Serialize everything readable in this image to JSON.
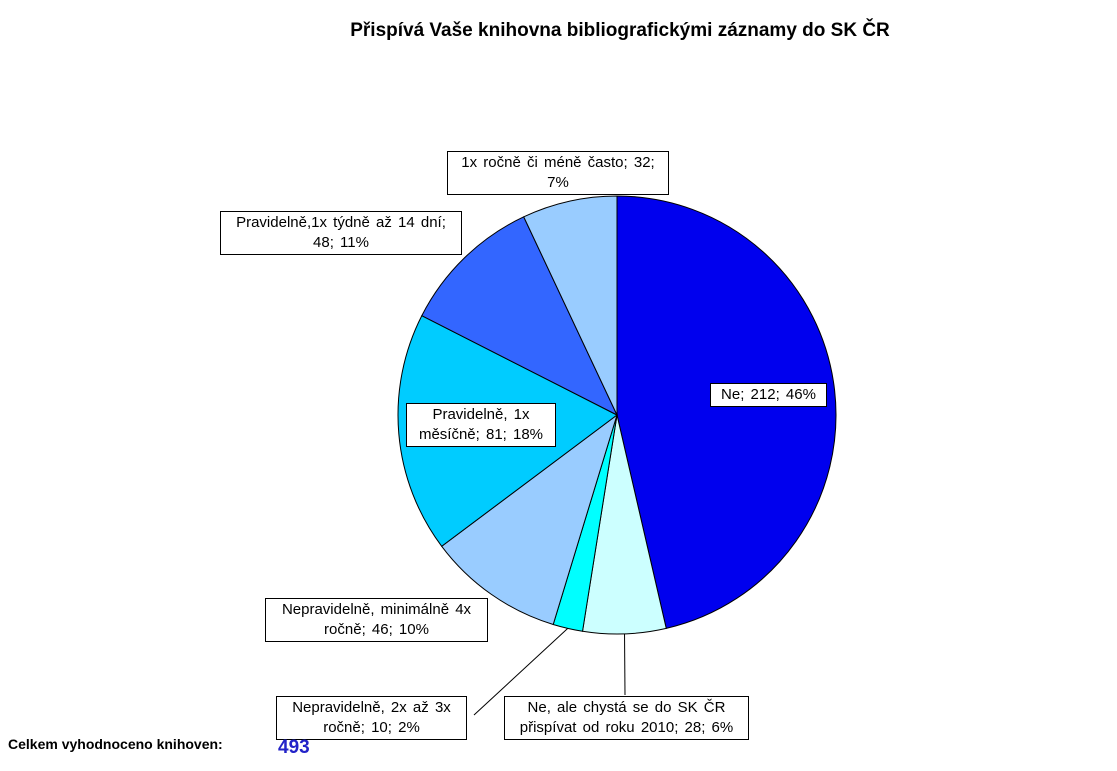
{
  "chart_data": {
    "type": "pie",
    "title": "Přispívá Vaše knihovna bibliografickými záznamy do SK ČR",
    "slices": [
      {
        "label": "Ne; 212; 46%",
        "value": 212,
        "percent": 46,
        "color": "#0000ee"
      },
      {
        "label": "Ne, ale chystá se do SK ČR přispívat od roku 2010; 28; 6%",
        "value": 28,
        "percent": 6,
        "color": "#ccffff"
      },
      {
        "label": "Nepravidelně,  2x až 3x ročně; 10; 2%",
        "value": 10,
        "percent": 2,
        "color": "#00ffff"
      },
      {
        "label": "Nepravidelně, minimálně 4x ročně; 46; 10%",
        "value": 46,
        "percent": 10,
        "color": "#99ccff"
      },
      {
        "label": "Pravidelně, 1x měsíčně; 81; 18%",
        "value": 81,
        "percent": 18,
        "color": "#00ccff"
      },
      {
        "label": "Pravidelně,1x týdně až 14 dní; 48; 11%",
        "value": 48,
        "percent": 11,
        "color": "#3366ff"
      },
      {
        "label": "1x ročně či méně často; 32; 7%",
        "value": 32,
        "percent": 7,
        "color": "#99ccff"
      }
    ]
  },
  "footer": {
    "label": "Celkem vyhodnoceno  knihoven:",
    "total": "493"
  }
}
